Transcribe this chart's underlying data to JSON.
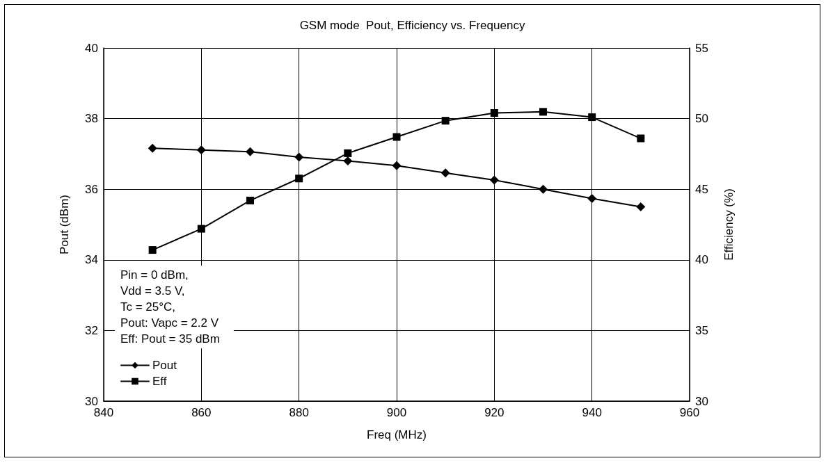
{
  "chart_data": {
    "type": "line",
    "title": "GSM mode  Pout, Efficiency vs. Frequency",
    "xlabel": "Freq (MHz)",
    "ylabel": "Pout (dBm)",
    "y2label": "Efficiency (%)",
    "annotations": [
      "Pin = 0 dBm,\nVdd = 3.5 V,\nTc = 25°C,\nPout: Vapc = 2.2 V\nEff: Pout = 35 dBm"
    ],
    "x": [
      850,
      860,
      870,
      880,
      890,
      900,
      910,
      920,
      930,
      940,
      950
    ],
    "series": [
      {
        "name": "Pout",
        "color": "#000000",
        "marker": "diamond",
        "values": [
          37.16,
          37.11,
          37.06,
          36.91,
          36.8,
          36.67,
          36.46,
          36.26,
          36.0,
          35.74,
          35.5
        ]
      },
      {
        "name": "Eff",
        "color": "#000000",
        "marker": "square",
        "axis": "y2",
        "values": [
          40.7,
          42.2,
          44.2,
          45.76,
          47.55,
          48.7,
          49.85,
          50.4,
          50.48,
          50.1,
          48.6
        ]
      }
    ],
    "xlim": [
      840,
      960
    ],
    "xticks": [
      840,
      860,
      880,
      900,
      920,
      940,
      960
    ],
    "ylim": [
      30,
      40
    ],
    "yticks": [
      30,
      32,
      34,
      36,
      38,
      40
    ],
    "y2lim": [
      30,
      55
    ],
    "y2ticks": [
      30,
      35,
      40,
      45,
      50,
      55
    ],
    "grid": true,
    "legend": "bottom left",
    "line_style": "solid"
  }
}
